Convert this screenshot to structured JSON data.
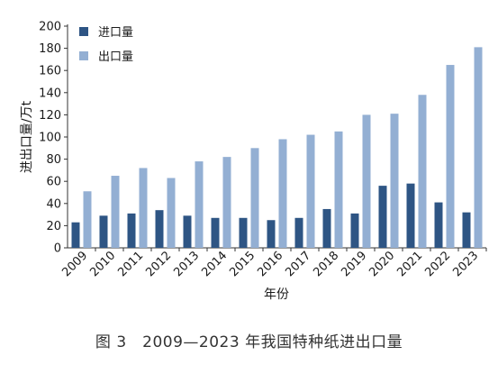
{
  "figure": {
    "caption": "图 3　2009—2023 年我国特种纸进出口量"
  },
  "colors": {
    "import": "#2e5584",
    "export": "#93afd3",
    "axis": "#333333"
  },
  "chart_data": {
    "type": "bar",
    "title": "",
    "xlabel": "年份",
    "ylabel": "进出口量/万t",
    "ylim": [
      0,
      200
    ],
    "yticks": [
      0,
      20,
      40,
      60,
      80,
      100,
      120,
      140,
      160,
      180,
      200
    ],
    "categories": [
      "2009",
      "2010",
      "2011",
      "2012",
      "2013",
      "2014",
      "2015",
      "2016",
      "2017",
      "2018",
      "2019",
      "2020",
      "2021",
      "2022",
      "2023"
    ],
    "series": [
      {
        "name": "进口量",
        "color": "#2e5584",
        "values": [
          23,
          29,
          31,
          34,
          29,
          27,
          27,
          25,
          27,
          35,
          31,
          56,
          58,
          41,
          32
        ]
      },
      {
        "name": "出口量",
        "color": "#93afd3",
        "values": [
          51,
          65,
          72,
          63,
          78,
          82,
          90,
          98,
          102,
          105,
          120,
          121,
          138,
          165,
          181
        ]
      }
    ],
    "legend": "top-left",
    "grid": false
  }
}
